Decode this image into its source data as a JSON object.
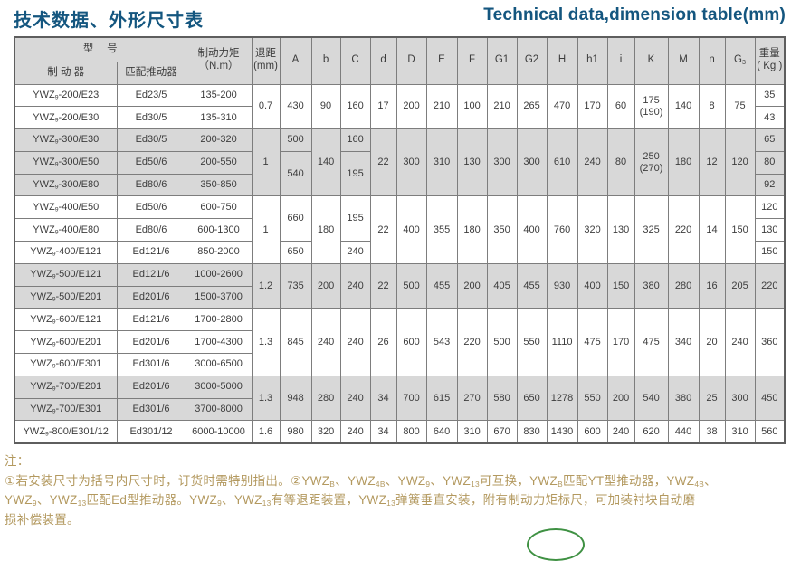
{
  "header": {
    "title_zh": "技术数据、外形尺寸表",
    "title_en": "Technical data,dimension table(mm)"
  },
  "colors": {
    "title_blue": "#14567f",
    "row_gray": "#d8d8d8",
    "notes_tan": "#b3995f",
    "logo_green": "#3f9143"
  },
  "series": {
    "prefix": "YWZ",
    "sub": "9"
  },
  "table": {
    "header_rows": [
      [
        {
          "t": "型　 号",
          "cs": 2
        },
        {
          "lines": [
            "制动力矩",
            "（N.m）"
          ],
          "rs": 2
        },
        {
          "lines": [
            "退距",
            "(mm)"
          ],
          "rs": 2
        },
        {
          "t": "A",
          "rs": 2
        },
        {
          "t": "b",
          "rs": 2
        },
        {
          "t": "C",
          "rs": 2
        },
        {
          "t": "d",
          "rs": 2
        },
        {
          "t": "D",
          "rs": 2
        },
        {
          "t": "E",
          "rs": 2
        },
        {
          "t": "F",
          "rs": 2
        },
        {
          "t": "G1",
          "rs": 2
        },
        {
          "t": "G2",
          "rs": 2
        },
        {
          "t": "H",
          "rs": 2
        },
        {
          "t": "h1",
          "rs": 2
        },
        {
          "t": "i",
          "rs": 2
        },
        {
          "t": "K",
          "rs": 2
        },
        {
          "t": "M",
          "rs": 2
        },
        {
          "t": "n",
          "rs": 2
        },
        {
          "seg": [
            {
              "t": "G"
            },
            {
              "t": "3",
              "sub": true
            }
          ],
          "rs": 2
        },
        {
          "lines": [
            "重量",
            "( Kg )"
          ],
          "rs": 2
        }
      ],
      [
        {
          "t": "制 动 器"
        },
        {
          "t": "匹配推动器"
        }
      ]
    ],
    "shades": [
      "w",
      "w",
      "g",
      "g",
      "g",
      "w",
      "w",
      "w",
      "g",
      "g",
      "w",
      "w",
      "w",
      "g",
      "g",
      "w"
    ],
    "rows": [
      [
        {
          "m": "-200/E23"
        },
        {
          "t": "Ed23/5"
        },
        {
          "t": "135-200"
        },
        {
          "t": "0.7",
          "rs": 2
        },
        {
          "t": "430",
          "rs": 2
        },
        {
          "t": "90",
          "rs": 2
        },
        {
          "t": "160",
          "rs": 2
        },
        {
          "t": "17",
          "rs": 2
        },
        {
          "t": "200",
          "rs": 2
        },
        {
          "t": "210",
          "rs": 2
        },
        {
          "t": "100",
          "rs": 2
        },
        {
          "t": "210",
          "rs": 2
        },
        {
          "t": "265",
          "rs": 2
        },
        {
          "t": "470",
          "rs": 2
        },
        {
          "t": "170",
          "rs": 2
        },
        {
          "t": "60",
          "rs": 2
        },
        {
          "lines": [
            "175",
            "(190)"
          ],
          "rs": 2
        },
        {
          "t": "140",
          "rs": 2
        },
        {
          "t": "8",
          "rs": 2
        },
        {
          "t": "75",
          "rs": 2
        },
        {
          "t": "35"
        }
      ],
      [
        {
          "m": "-200/E30"
        },
        {
          "t": "Ed30/5"
        },
        {
          "t": "135-310"
        },
        {
          "t": "43"
        }
      ],
      [
        {
          "m": "-300/E30"
        },
        {
          "t": "Ed30/5"
        },
        {
          "t": "200-320"
        },
        {
          "t": "1",
          "rs": 3
        },
        {
          "t": "500"
        },
        {
          "t": "140",
          "rs": 3
        },
        {
          "t": "160"
        },
        {
          "t": "22",
          "rs": 3
        },
        {
          "t": "300",
          "rs": 3
        },
        {
          "t": "310",
          "rs": 3
        },
        {
          "t": "130",
          "rs": 3
        },
        {
          "t": "300",
          "rs": 3
        },
        {
          "t": "300",
          "rs": 3
        },
        {
          "t": "610",
          "rs": 3
        },
        {
          "t": "240",
          "rs": 3
        },
        {
          "t": "80",
          "rs": 3
        },
        {
          "lines": [
            "250",
            "(270)"
          ],
          "rs": 3
        },
        {
          "t": "180",
          "rs": 3
        },
        {
          "t": "12",
          "rs": 3
        },
        {
          "t": "120",
          "rs": 3
        },
        {
          "t": "65"
        }
      ],
      [
        {
          "m": "-300/E50"
        },
        {
          "t": "Ed50/6"
        },
        {
          "t": "200-550"
        },
        {
          "t": "540",
          "rs": 2
        },
        {
          "t": "195",
          "rs": 2
        },
        {
          "t": "80"
        }
      ],
      [
        {
          "m": "-300/E80"
        },
        {
          "t": "Ed80/6"
        },
        {
          "t": "350-850"
        },
        {
          "t": "92"
        }
      ],
      [
        {
          "m": "-400/E50"
        },
        {
          "t": "Ed50/6"
        },
        {
          "t": "600-750"
        },
        {
          "t": "1",
          "rs": 3
        },
        {
          "t": "660",
          "rs": 2
        },
        {
          "t": "180",
          "rs": 3
        },
        {
          "t": "195",
          "rs": 2
        },
        {
          "t": "22",
          "rs": 3
        },
        {
          "t": "400",
          "rs": 3
        },
        {
          "t": "355",
          "rs": 3
        },
        {
          "t": "180",
          "rs": 3
        },
        {
          "t": "350",
          "rs": 3
        },
        {
          "t": "400",
          "rs": 3
        },
        {
          "t": "760",
          "rs": 3
        },
        {
          "t": "320",
          "rs": 3
        },
        {
          "t": "130",
          "rs": 3
        },
        {
          "t": "325",
          "rs": 3
        },
        {
          "t": "220",
          "rs": 3
        },
        {
          "t": "14",
          "rs": 3
        },
        {
          "t": "150",
          "rs": 3
        },
        {
          "t": "120"
        }
      ],
      [
        {
          "m": "-400/E80"
        },
        {
          "t": "Ed80/6"
        },
        {
          "t": "600-1300"
        },
        {
          "t": "130"
        }
      ],
      [
        {
          "m": "-400/E121"
        },
        {
          "t": "Ed121/6"
        },
        {
          "t": "850-2000"
        },
        {
          "t": "650"
        },
        {
          "t": "240"
        },
        {
          "t": "150"
        }
      ],
      [
        {
          "m": "-500/E121"
        },
        {
          "t": "Ed121/6"
        },
        {
          "t": "1000-2600"
        },
        {
          "t": "1.2",
          "rs": 2
        },
        {
          "t": "735",
          "rs": 2
        },
        {
          "t": "200",
          "rs": 2
        },
        {
          "t": "240",
          "rs": 2
        },
        {
          "t": "22",
          "rs": 2
        },
        {
          "t": "500",
          "rs": 2
        },
        {
          "t": "455",
          "rs": 2
        },
        {
          "t": "200",
          "rs": 2
        },
        {
          "t": "405",
          "rs": 2
        },
        {
          "t": "455",
          "rs": 2
        },
        {
          "t": "930",
          "rs": 2
        },
        {
          "t": "400",
          "rs": 2
        },
        {
          "t": "150",
          "rs": 2
        },
        {
          "t": "380",
          "rs": 2
        },
        {
          "t": "280",
          "rs": 2
        },
        {
          "t": "16",
          "rs": 2
        },
        {
          "t": "205",
          "rs": 2
        },
        {
          "t": "220",
          "rs": 2
        }
      ],
      [
        {
          "m": "-500/E201"
        },
        {
          "t": "Ed201/6"
        },
        {
          "t": "1500-3700"
        }
      ],
      [
        {
          "m": "-600/E121"
        },
        {
          "t": "Ed121/6"
        },
        {
          "t": "1700-2800"
        },
        {
          "t": "1.3",
          "rs": 3
        },
        {
          "t": "845",
          "rs": 3
        },
        {
          "t": "240",
          "rs": 3
        },
        {
          "t": "240",
          "rs": 3
        },
        {
          "t": "26",
          "rs": 3
        },
        {
          "t": "600",
          "rs": 3
        },
        {
          "t": "543",
          "rs": 3
        },
        {
          "t": "220",
          "rs": 3
        },
        {
          "t": "500",
          "rs": 3
        },
        {
          "t": "550",
          "rs": 3
        },
        {
          "t": "1110",
          "rs": 3
        },
        {
          "t": "475",
          "rs": 3
        },
        {
          "t": "170",
          "rs": 3
        },
        {
          "t": "475",
          "rs": 3
        },
        {
          "t": "340",
          "rs": 3
        },
        {
          "t": "20",
          "rs": 3
        },
        {
          "t": "240",
          "rs": 3
        },
        {
          "t": "360",
          "rs": 3
        }
      ],
      [
        {
          "m": "-600/E201"
        },
        {
          "t": "Ed201/6"
        },
        {
          "t": "1700-4300"
        }
      ],
      [
        {
          "m": "-600/E301"
        },
        {
          "t": "Ed301/6"
        },
        {
          "t": "3000-6500"
        }
      ],
      [
        {
          "m": "-700/E201"
        },
        {
          "t": "Ed201/6"
        },
        {
          "t": "3000-5000"
        },
        {
          "t": "1.3",
          "rs": 2
        },
        {
          "t": "948",
          "rs": 2
        },
        {
          "t": "280",
          "rs": 2
        },
        {
          "t": "240",
          "rs": 2
        },
        {
          "t": "34",
          "rs": 2
        },
        {
          "t": "700",
          "rs": 2
        },
        {
          "t": "615",
          "rs": 2
        },
        {
          "t": "270",
          "rs": 2
        },
        {
          "t": "580",
          "rs": 2
        },
        {
          "t": "650",
          "rs": 2
        },
        {
          "t": "1278",
          "rs": 2
        },
        {
          "t": "550",
          "rs": 2
        },
        {
          "t": "200",
          "rs": 2
        },
        {
          "t": "540",
          "rs": 2
        },
        {
          "t": "380",
          "rs": 2
        },
        {
          "t": "25",
          "rs": 2
        },
        {
          "t": "300",
          "rs": 2
        },
        {
          "t": "450",
          "rs": 2
        }
      ],
      [
        {
          "m": "-700/E301"
        },
        {
          "t": "Ed301/6"
        },
        {
          "t": "3700-8000"
        }
      ],
      [
        {
          "m": "-800/E301/12"
        },
        {
          "t": "Ed301/12"
        },
        {
          "t": "6000-10000"
        },
        {
          "t": "1.6"
        },
        {
          "t": "980"
        },
        {
          "t": "320"
        },
        {
          "t": "240"
        },
        {
          "t": "34"
        },
        {
          "t": "800"
        },
        {
          "t": "640"
        },
        {
          "t": "310"
        },
        {
          "t": "670"
        },
        {
          "t": "830"
        },
        {
          "t": "1430"
        },
        {
          "t": "600"
        },
        {
          "t": "240"
        },
        {
          "t": "620"
        },
        {
          "t": "440"
        },
        {
          "t": "38"
        },
        {
          "t": "310"
        },
        {
          "t": "560"
        }
      ]
    ]
  },
  "notes": {
    "label": "注：",
    "lines": [
      [
        {
          "t": "①若安装尺寸为括号内尺寸时，订货时需特别指出。②YWZ"
        },
        {
          "t": "B",
          "sub": true
        },
        {
          "t": "、YWZ"
        },
        {
          "t": "4B",
          "sub": true
        },
        {
          "t": "、YWZ"
        },
        {
          "t": "9",
          "sub": true
        },
        {
          "t": "、YWZ"
        },
        {
          "t": "13",
          "sub": true
        },
        {
          "t": "可互换，YWZ"
        },
        {
          "t": "B",
          "sub": true
        },
        {
          "t": "匹配YT型推动器，YWZ"
        },
        {
          "t": "4B",
          "sub": true
        },
        {
          "t": "、"
        }
      ],
      [
        {
          "t": "YWZ"
        },
        {
          "t": "9",
          "sub": true
        },
        {
          "t": "、YWZ"
        },
        {
          "t": "13",
          "sub": true
        },
        {
          "t": "匹配Ed型推动器。YWZ"
        },
        {
          "t": "9",
          "sub": true
        },
        {
          "t": "、YWZ"
        },
        {
          "t": "13",
          "sub": true
        },
        {
          "t": "有等退距装置，YWZ"
        },
        {
          "t": "13",
          "sub": true
        },
        {
          "t": "弹簧垂直安装，附有制动力矩标尺，可加装衬块自动磨"
        }
      ],
      [
        {
          "t": "损补偿装置。"
        }
      ]
    ]
  }
}
